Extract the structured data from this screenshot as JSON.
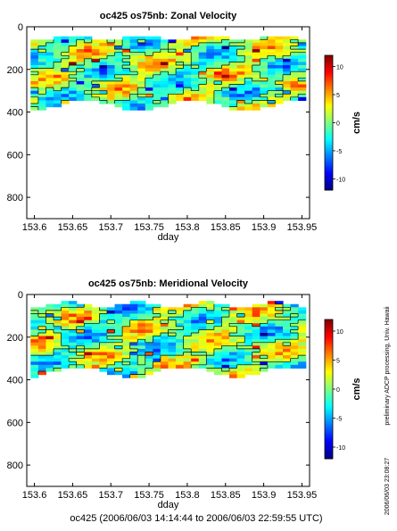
{
  "side_text": {
    "line1": "preliminary ADCP processing,  Univ. Hawaii",
    "line2": "2006/06/03 23:08:27"
  },
  "footer": "oc425 (2006/06/03 14:14:44 to 2006/06/03 22:59:55 UTC)",
  "colors": {
    "missing": "#ffffff",
    "contour": "#000000"
  },
  "chart_data": [
    {
      "type": "heatmap",
      "title": "oc425 os75nb: Zonal Velocity",
      "xlabel": "dday",
      "ylabel": "",
      "xlim": [
        153.59,
        153.96
      ],
      "ylim": [
        900,
        0
      ],
      "x_ticks": [
        "153.6",
        "153.65",
        "153.7",
        "153.75",
        "153.8",
        "153.85",
        "153.9",
        "153.95"
      ],
      "y_ticks": [
        "0",
        "200",
        "400",
        "600",
        "800"
      ],
      "data_extent": {
        "x": [
          153.595,
          153.955
        ],
        "depth_top": [
          45,
          70
        ],
        "depth_bottom": [
          335,
          385
        ]
      },
      "colorbar": {
        "label": "cm/s",
        "range": [
          -12,
          12
        ],
        "ticks": [
          "10",
          "5",
          "0",
          "-5",
          "-10"
        ]
      },
      "seed": 11
    },
    {
      "type": "heatmap",
      "title": "oc425 os75nb: Meridional Velocity",
      "xlabel": "dday",
      "ylabel": "",
      "xlim": [
        153.59,
        153.96
      ],
      "ylim": [
        900,
        0
      ],
      "x_ticks": [
        "153.6",
        "153.65",
        "153.7",
        "153.75",
        "153.8",
        "153.85",
        "153.9",
        "153.95"
      ],
      "y_ticks": [
        "0",
        "200",
        "400",
        "600",
        "800"
      ],
      "data_extent": {
        "x": [
          153.595,
          153.955
        ],
        "depth_top": [
          40,
          65
        ],
        "depth_bottom": [
          330,
          380
        ]
      },
      "colorbar": {
        "label": "cm/s",
        "range": [
          -12,
          12
        ],
        "ticks": [
          "10",
          "5",
          "0",
          "-5",
          "-10"
        ]
      },
      "seed": 23
    }
  ]
}
